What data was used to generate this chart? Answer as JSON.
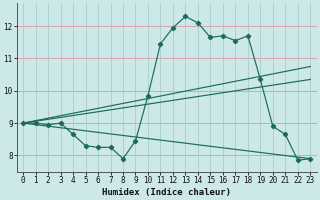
{
  "xlabel": "Humidex (Indice chaleur)",
  "background_color": "#cce8e8",
  "line_color": "#1a6b5a",
  "grid_color_h": "#dd9999",
  "grid_color_v": "#aacccc",
  "xlim": [
    -0.5,
    23.5
  ],
  "ylim": [
    7.5,
    12.7
  ],
  "xticks": [
    0,
    1,
    2,
    3,
    4,
    5,
    6,
    7,
    8,
    9,
    10,
    11,
    12,
    13,
    14,
    15,
    16,
    17,
    18,
    19,
    20,
    21,
    22,
    23
  ],
  "yticks": [
    8,
    9,
    10,
    11,
    12
  ],
  "curve1_x": [
    0,
    1,
    2,
    3,
    4,
    5,
    6,
    7,
    8,
    9,
    10,
    11,
    12,
    13,
    14,
    15,
    16,
    17,
    18,
    19,
    20,
    21,
    22,
    23
  ],
  "curve1_y": [
    9.0,
    9.0,
    8.95,
    9.0,
    8.65,
    8.3,
    8.25,
    8.25,
    7.9,
    8.45,
    9.85,
    11.45,
    11.95,
    12.3,
    12.1,
    11.65,
    11.7,
    11.55,
    11.7,
    10.35,
    8.9,
    8.65,
    7.85,
    7.9
  ],
  "line1_end_y": 10.75,
  "line2_end_y": 10.35,
  "line3_end_y": 7.9,
  "start_x": 0,
  "start_y": 9.0,
  "end_x": 23
}
